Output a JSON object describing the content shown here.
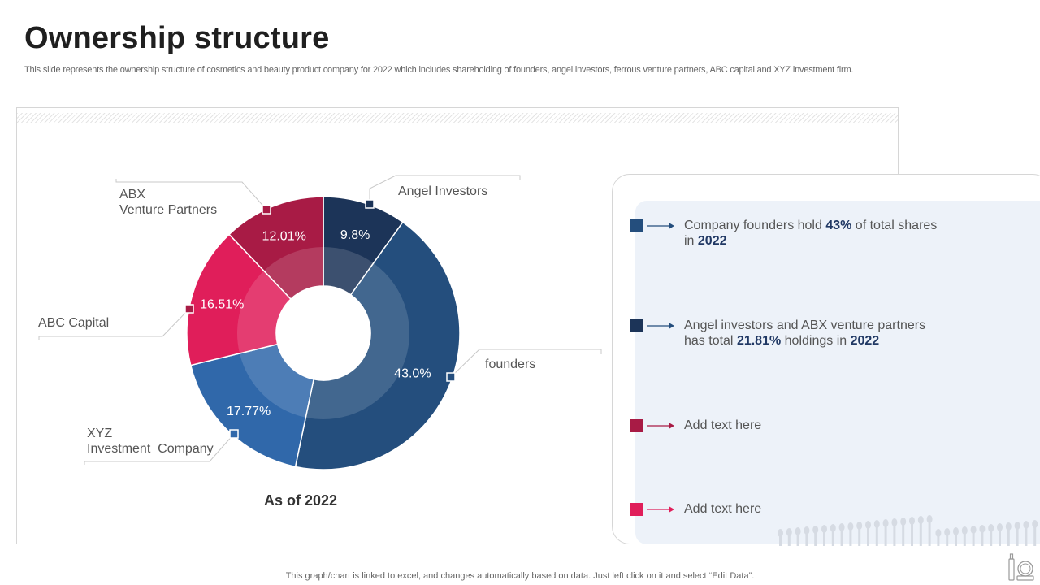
{
  "header": {
    "title": "Ownership structure",
    "subtitle": "This slide represents the ownership structure of cosmetics and beauty product company for 2022 which includes shareholding of founders, angel investors, ferrous venture partners, ABC capital and XYZ  investment firm."
  },
  "chart_data": {
    "type": "pie",
    "variant": "donut",
    "title": "",
    "caption": "As of 2022",
    "categories": [
      "Angel Investors",
      "founders",
      "XYZ Investment  Company",
      "ABC Capital",
      "ABX Venture Partners"
    ],
    "values": [
      9.8,
      43.0,
      17.77,
      16.51,
      12.01
    ],
    "value_labels": [
      "9.8%",
      "43.0%",
      "17.77%",
      "16.51%",
      "12.01%"
    ],
    "colors": [
      "#1c3458",
      "#244e7d",
      "#3068aa",
      "#e01e5a",
      "#a81b45"
    ]
  },
  "labels": {
    "angel": "Angel Investors",
    "founders": "founders",
    "xyz": "XYZ\nInvestment  Company",
    "abc": "ABC Capital",
    "abx": "ABX\nVenture Partners"
  },
  "notes": [
    {
      "color": "#244e7d",
      "t1": "Company founders hold ",
      "b1": "43%",
      "t2": " of total shares in ",
      "b2": "2022",
      "t3": ""
    },
    {
      "color": "#1c3458",
      "t1": "Angel investors and ABX venture  partners has total ",
      "b1": "21.81%",
      "t2": " holdings in ",
      "b2": "2022",
      "t3": ""
    },
    {
      "color": "#a81b45",
      "t1": "Add text here",
      "b1": "",
      "t2": "",
      "b2": "",
      "t3": ""
    },
    {
      "color": "#e01e5a",
      "t1": "Add text here",
      "b1": "",
      "t2": "",
      "b2": "",
      "t3": ""
    }
  ],
  "footer": {
    "text": "This graph/chart is linked to excel,  and changes automatically based on data. Just left click on it and select “Edit Data”."
  },
  "icons": [
    "makeup-brushes-icon",
    "beauty-products-icon"
  ]
}
